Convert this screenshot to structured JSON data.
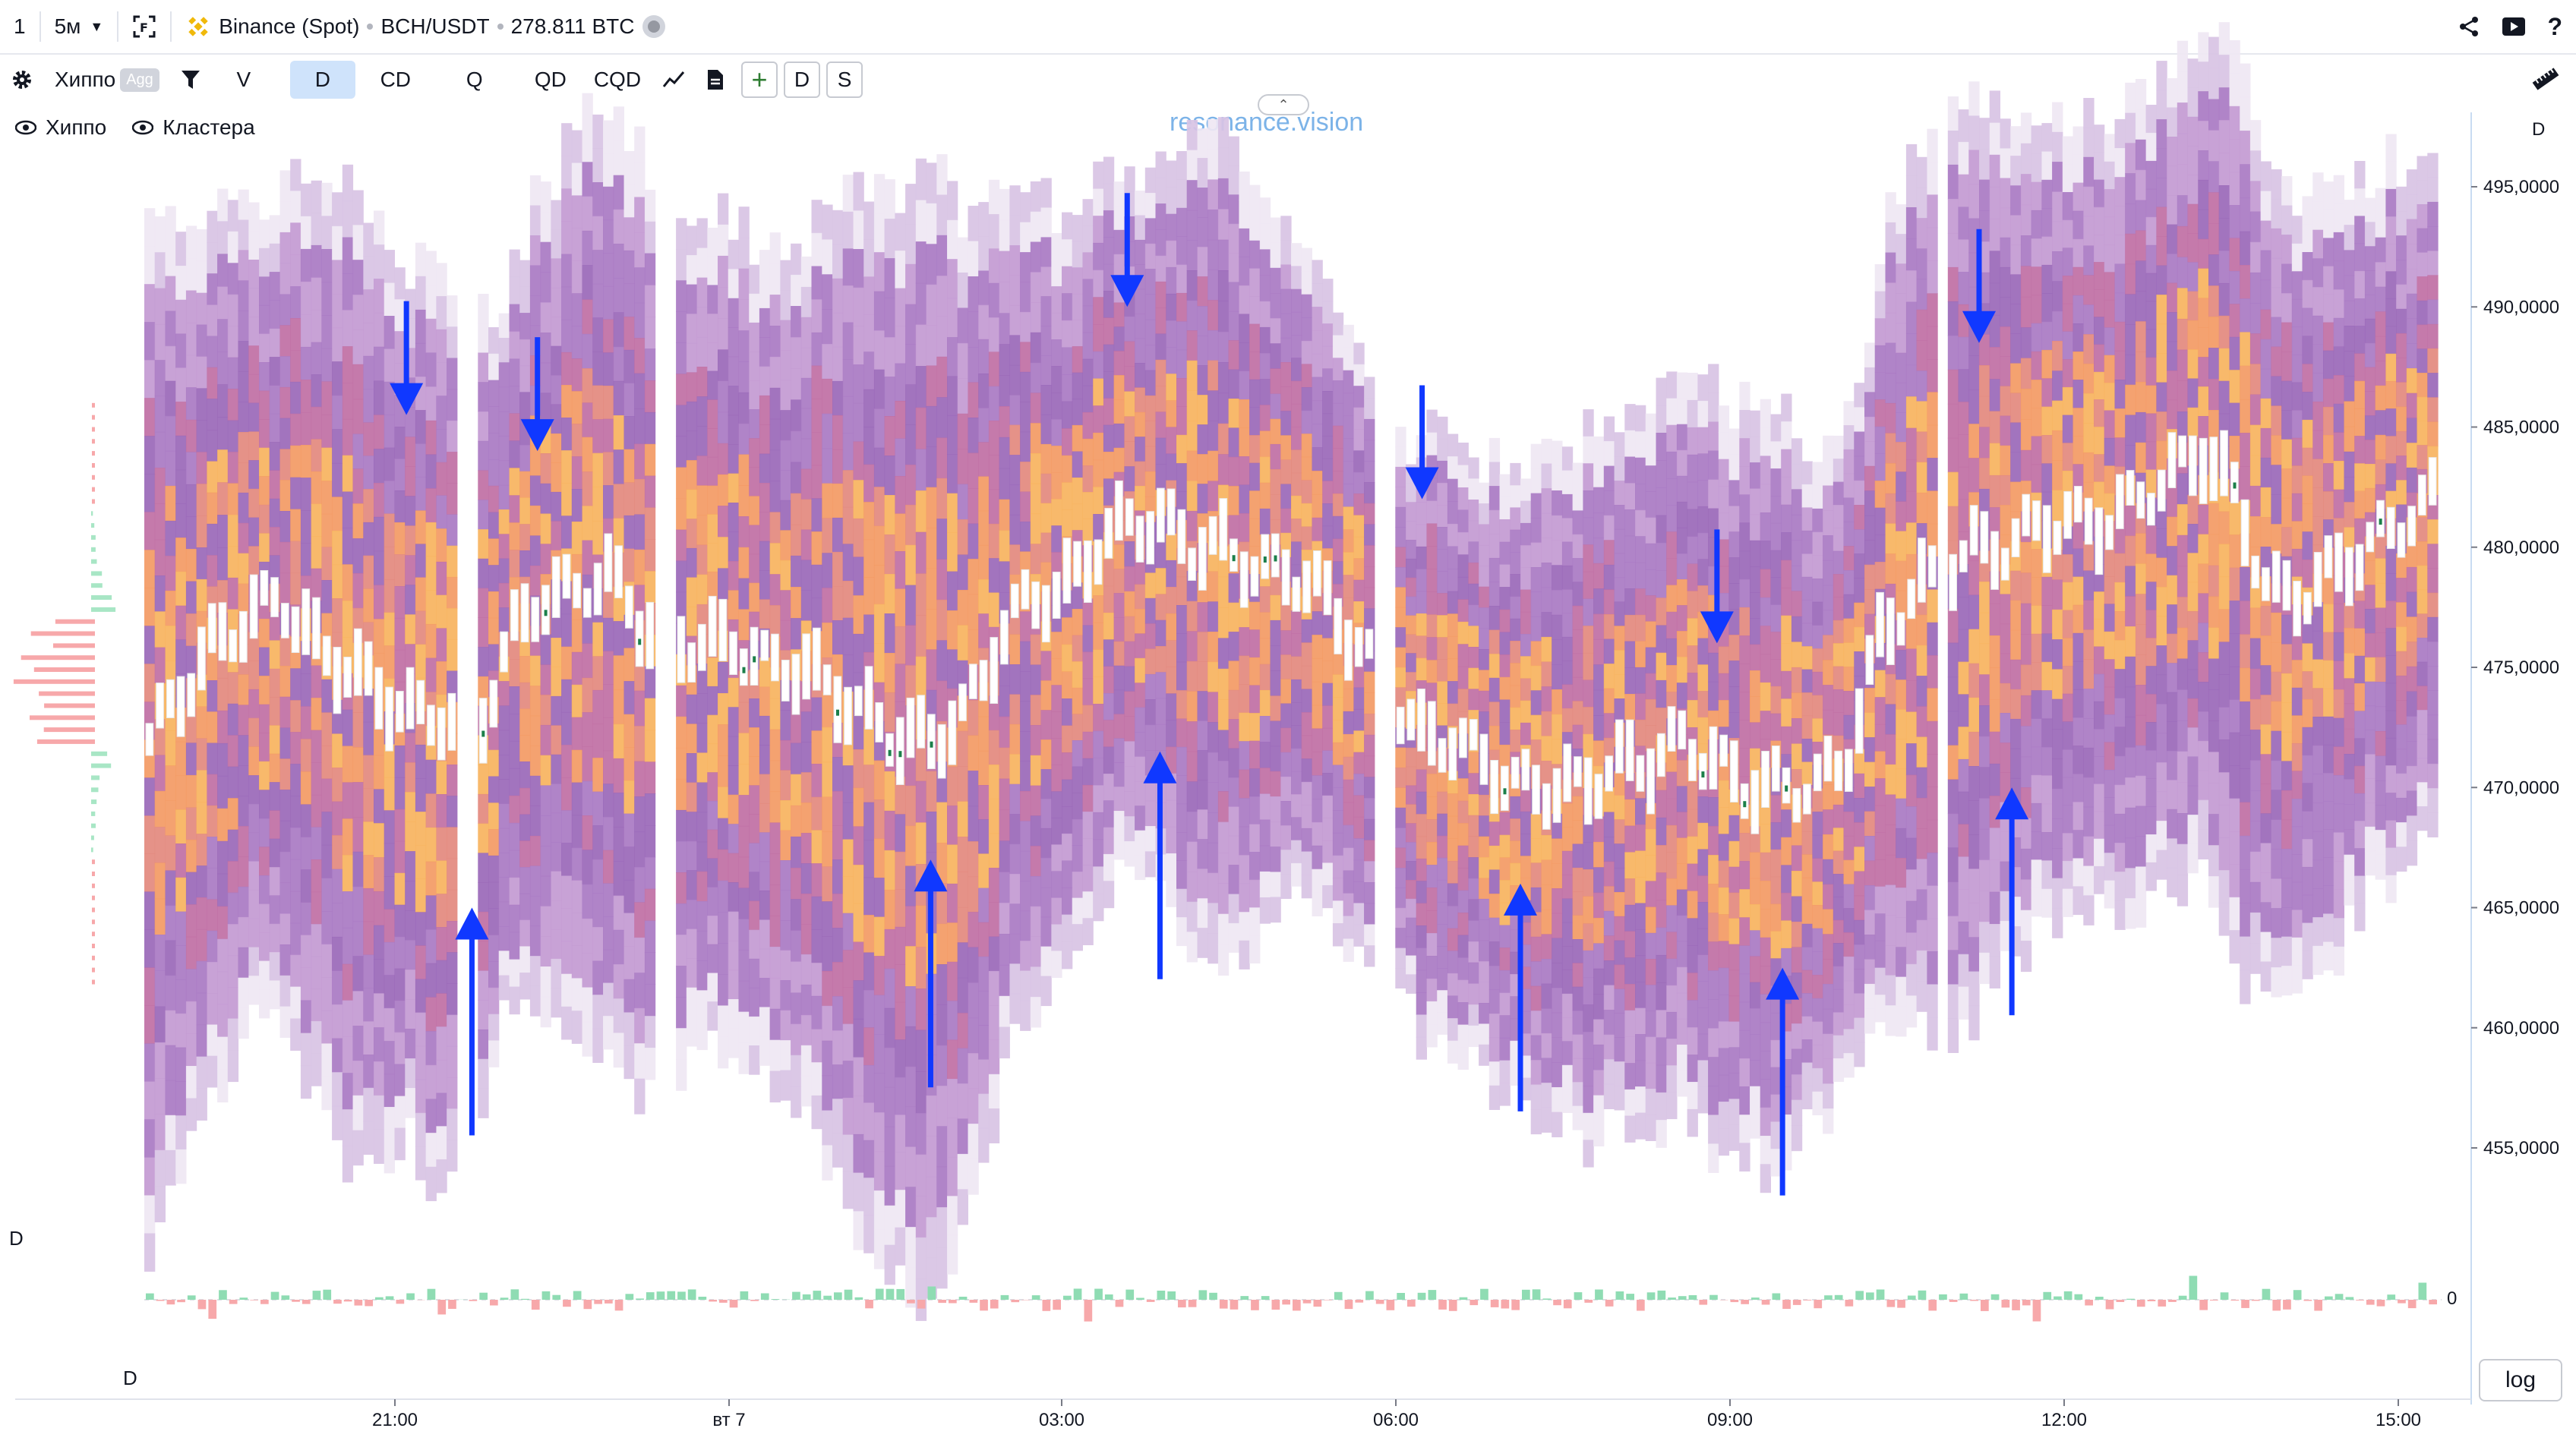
{
  "topbar": {
    "layout": "1",
    "interval": "5м",
    "exchange": "Binance (Spot)",
    "pair": "BCH/USDT",
    "volume": "278.811 BTC"
  },
  "toolbar": {
    "indicator": "Хиппо",
    "agg": "Agg",
    "modes": [
      "V",
      "D",
      "CD",
      "Q",
      "QD",
      "CQD"
    ],
    "active_mode": "D",
    "sq_buttons": [
      "+",
      "D",
      "S"
    ]
  },
  "legend": {
    "item1": "Хиппо",
    "item2": "Кластера"
  },
  "watermark": "resonance.vision",
  "price_axis": {
    "header": "D",
    "ticks": [
      "495,0000",
      "490,0000",
      "485,0000",
      "480,0000",
      "475,0000",
      "470,0000",
      "465,0000",
      "460,0000",
      "455,0000"
    ]
  },
  "time_axis": {
    "ticks": [
      "21:00",
      "вт 7",
      "03:00",
      "06:00",
      "09:00",
      "12:00",
      "15:00"
    ]
  },
  "sub_pane": {
    "label_top": "D",
    "label_bottom": "D",
    "zero_label": "0"
  },
  "log_button": "log",
  "chart_data": {
    "type": "heatmap",
    "title": "BCH/USDT 5м — Binance (Spot)",
    "price_range": [
      452,
      497
    ],
    "price_ticks": [
      495,
      490,
      485,
      480,
      475,
      470,
      465,
      460,
      455
    ],
    "time_labels": [
      "21:00",
      "вт 7",
      "03:00",
      "06:00",
      "09:00",
      "12:00",
      "15:00"
    ],
    "center_price": [
      472,
      474,
      476,
      477,
      478,
      476,
      475,
      474,
      473,
      473,
      472,
      476,
      478,
      478,
      479,
      477,
      476,
      476,
      476,
      475,
      475,
      474,
      473,
      472,
      472,
      473,
      476,
      478,
      478,
      480,
      481,
      481,
      480,
      480,
      479,
      479,
      478,
      476,
      474,
      472,
      472,
      471,
      470,
      470,
      470,
      471,
      471,
      472,
      471,
      470,
      470,
      470,
      471,
      476,
      478,
      479,
      480,
      480,
      481,
      481,
      481,
      482,
      483,
      484,
      482,
      478,
      478,
      479,
      480,
      481,
      482
    ],
    "band_half_width": [
      22,
      20,
      19,
      17,
      17,
      19,
      21,
      19,
      18,
      20,
      17,
      15,
      17,
      19,
      20,
      20,
      18,
      17,
      18,
      17,
      18,
      20,
      22,
      22,
      24,
      21,
      19,
      17,
      16,
      15,
      15,
      15,
      17,
      17,
      15,
      13,
      13,
      13,
      12,
      12,
      13,
      13,
      13,
      14,
      15,
      15,
      16,
      16,
      16,
      16,
      16,
      14,
      13,
      16,
      18,
      19,
      19,
      18,
      17,
      17,
      17,
      17,
      17,
      18,
      19,
      18,
      16,
      16,
      15,
      15,
      15
    ],
    "arrows": [
      {
        "dir": "down",
        "price_tip": 485.5,
        "time_index": 8
      },
      {
        "dir": "down",
        "price_tip": 484,
        "time_index": 12
      },
      {
        "dir": "down",
        "price_tip": 490,
        "time_index": 30
      },
      {
        "dir": "down",
        "price_tip": 482,
        "time_index": 39
      },
      {
        "dir": "down",
        "price_tip": 476,
        "time_index": 48
      },
      {
        "dir": "down",
        "price_tip": 488.5,
        "time_index": 56
      },
      {
        "dir": "up",
        "price_tip": 465,
        "time_index": 10
      },
      {
        "dir": "up",
        "price_tip": 467,
        "time_index": 24
      },
      {
        "dir": "up",
        "price_tip": 471.5,
        "time_index": 31
      },
      {
        "dir": "up",
        "price_tip": 466,
        "time_index": 42
      },
      {
        "dir": "up",
        "price_tip": 462.5,
        "time_index": 50
      },
      {
        "dir": "up",
        "price_tip": 470,
        "time_index": 57
      }
    ],
    "delta_pane": {
      "zero": 0
    }
  }
}
